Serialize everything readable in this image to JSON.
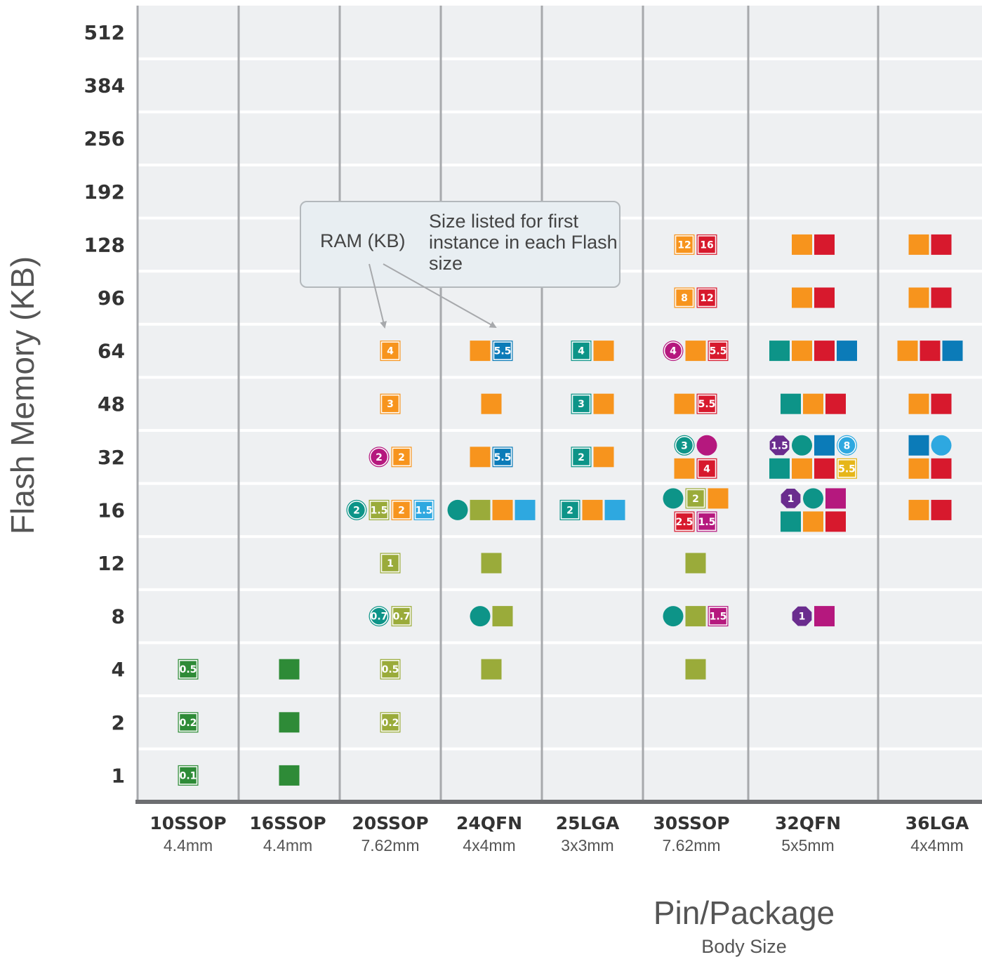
{
  "chart_data": {
    "type": "scatter",
    "ylabel": "Flash Memory (KB)",
    "xlabel": "Pin/Package",
    "xlabel_sub": "Body Size",
    "y_ticks": [
      "512",
      "384",
      "256",
      "192",
      "128",
      "96",
      "64",
      "48",
      "32",
      "16",
      "12",
      "8",
      "4",
      "2",
      "1"
    ],
    "packages": [
      {
        "name": "10SSOP",
        "size": "4.4mm"
      },
      {
        "name": "16SSOP",
        "size": "4.4mm"
      },
      {
        "name": "20SSOP",
        "size": "7.62mm"
      },
      {
        "name": "24QFN",
        "size": "4x4mm"
      },
      {
        "name": "25LGA",
        "size": "3x3mm"
      },
      {
        "name": "30SSOP",
        "size": "7.62mm"
      },
      {
        "name": "32QFN",
        "size": "5x5mm"
      },
      {
        "name": "36LGA",
        "size": "4x4mm"
      }
    ],
    "annotation": {
      "ram_label": "RAM (KB)",
      "size_note": "Size listed for first instance in each Flash size"
    },
    "colors": {
      "darkgreen": "#2e8b37",
      "olive": "#9aab3a",
      "teal": "#0d9488",
      "orange": "#f7941d",
      "red": "#d7192d",
      "blue": "#0b7bb8",
      "lightblue": "#2ea8e0",
      "magenta": "#b5187e",
      "purple": "#6a2c8e",
      "yellow": "#e6b619"
    },
    "points": [
      {
        "package": "10SSOP",
        "flash": "4",
        "row": 0,
        "markers": [
          {
            "shape": "square",
            "color": "darkgreen",
            "ram": "0.5"
          }
        ]
      },
      {
        "package": "10SSOP",
        "flash": "2",
        "row": 0,
        "markers": [
          {
            "shape": "square",
            "color": "darkgreen",
            "ram": "0.2"
          }
        ]
      },
      {
        "package": "10SSOP",
        "flash": "1",
        "row": 0,
        "markers": [
          {
            "shape": "square",
            "color": "darkgreen",
            "ram": "0.1"
          }
        ]
      },
      {
        "package": "16SSOP",
        "flash": "4",
        "row": 0,
        "markers": [
          {
            "shape": "square",
            "color": "darkgreen",
            "ram": ""
          }
        ]
      },
      {
        "package": "16SSOP",
        "flash": "2",
        "row": 0,
        "markers": [
          {
            "shape": "square",
            "color": "darkgreen",
            "ram": ""
          }
        ]
      },
      {
        "package": "16SSOP",
        "flash": "1",
        "row": 0,
        "markers": [
          {
            "shape": "square",
            "color": "darkgreen",
            "ram": ""
          }
        ]
      },
      {
        "package": "20SSOP",
        "flash": "64",
        "row": 0,
        "markers": [
          {
            "shape": "square",
            "color": "orange",
            "ram": "4"
          }
        ]
      },
      {
        "package": "20SSOP",
        "flash": "48",
        "row": 0,
        "markers": [
          {
            "shape": "square",
            "color": "orange",
            "ram": "3"
          }
        ]
      },
      {
        "package": "20SSOP",
        "flash": "32",
        "row": 0,
        "markers": [
          {
            "shape": "circle",
            "color": "magenta",
            "ram": "2"
          },
          {
            "shape": "square",
            "color": "orange",
            "ram": "2"
          }
        ]
      },
      {
        "package": "20SSOP",
        "flash": "16",
        "row": 0,
        "markers": [
          {
            "shape": "circle",
            "color": "teal",
            "ram": "2"
          },
          {
            "shape": "square",
            "color": "olive",
            "ram": "1.5"
          },
          {
            "shape": "square",
            "color": "orange",
            "ram": "2"
          },
          {
            "shape": "square",
            "color": "lightblue",
            "ram": "1.5"
          }
        ]
      },
      {
        "package": "20SSOP",
        "flash": "12",
        "row": 0,
        "markers": [
          {
            "shape": "square",
            "color": "olive",
            "ram": "1"
          }
        ]
      },
      {
        "package": "20SSOP",
        "flash": "8",
        "row": 0,
        "markers": [
          {
            "shape": "circle",
            "color": "teal",
            "ram": "0.7"
          },
          {
            "shape": "square",
            "color": "olive",
            "ram": "0.7"
          }
        ]
      },
      {
        "package": "20SSOP",
        "flash": "4",
        "row": 0,
        "markers": [
          {
            "shape": "square",
            "color": "olive",
            "ram": "0.5"
          }
        ]
      },
      {
        "package": "20SSOP",
        "flash": "2",
        "row": 0,
        "markers": [
          {
            "shape": "square",
            "color": "olive",
            "ram": "0.2"
          }
        ]
      },
      {
        "package": "24QFN",
        "flash": "64",
        "row": 0,
        "markers": [
          {
            "shape": "square",
            "color": "orange",
            "ram": ""
          },
          {
            "shape": "square",
            "color": "blue",
            "ram": "5.5"
          }
        ]
      },
      {
        "package": "24QFN",
        "flash": "48",
        "row": 0,
        "markers": [
          {
            "shape": "square",
            "color": "orange",
            "ram": ""
          }
        ]
      },
      {
        "package": "24QFN",
        "flash": "32",
        "row": 0,
        "markers": [
          {
            "shape": "square",
            "color": "orange",
            "ram": ""
          },
          {
            "shape": "square",
            "color": "blue",
            "ram": "5.5"
          }
        ]
      },
      {
        "package": "24QFN",
        "flash": "16",
        "row": 0,
        "markers": [
          {
            "shape": "circle",
            "color": "teal",
            "ram": ""
          },
          {
            "shape": "square",
            "color": "olive",
            "ram": ""
          },
          {
            "shape": "square",
            "color": "orange",
            "ram": ""
          },
          {
            "shape": "square",
            "color": "lightblue",
            "ram": ""
          }
        ]
      },
      {
        "package": "24QFN",
        "flash": "12",
        "row": 0,
        "markers": [
          {
            "shape": "square",
            "color": "olive",
            "ram": ""
          }
        ]
      },
      {
        "package": "24QFN",
        "flash": "8",
        "row": 0,
        "markers": [
          {
            "shape": "circle",
            "color": "teal",
            "ram": ""
          },
          {
            "shape": "square",
            "color": "olive",
            "ram": ""
          }
        ]
      },
      {
        "package": "24QFN",
        "flash": "4",
        "row": 0,
        "markers": [
          {
            "shape": "square",
            "color": "olive",
            "ram": ""
          }
        ]
      },
      {
        "package": "25LGA",
        "flash": "64",
        "row": 0,
        "markers": [
          {
            "shape": "square",
            "color": "teal",
            "ram": "4"
          },
          {
            "shape": "square",
            "color": "orange",
            "ram": ""
          }
        ]
      },
      {
        "package": "25LGA",
        "flash": "48",
        "row": 0,
        "markers": [
          {
            "shape": "square",
            "color": "teal",
            "ram": "3"
          },
          {
            "shape": "square",
            "color": "orange",
            "ram": ""
          }
        ]
      },
      {
        "package": "25LGA",
        "flash": "32",
        "row": 0,
        "markers": [
          {
            "shape": "square",
            "color": "teal",
            "ram": "2"
          },
          {
            "shape": "square",
            "color": "orange",
            "ram": ""
          }
        ]
      },
      {
        "package": "25LGA",
        "flash": "16",
        "row": 0,
        "markers": [
          {
            "shape": "square",
            "color": "teal",
            "ram": "2"
          },
          {
            "shape": "square",
            "color": "orange",
            "ram": ""
          },
          {
            "shape": "square",
            "color": "lightblue",
            "ram": ""
          }
        ]
      },
      {
        "package": "30SSOP",
        "flash": "128",
        "row": 0,
        "markers": [
          {
            "shape": "square",
            "color": "orange",
            "ram": "12"
          },
          {
            "shape": "square",
            "color": "red",
            "ram": "16"
          }
        ]
      },
      {
        "package": "30SSOP",
        "flash": "96",
        "row": 0,
        "markers": [
          {
            "shape": "square",
            "color": "orange",
            "ram": "8"
          },
          {
            "shape": "square",
            "color": "red",
            "ram": "12"
          }
        ]
      },
      {
        "package": "30SSOP",
        "flash": "64",
        "row": 0,
        "markers": [
          {
            "shape": "circle",
            "color": "magenta",
            "ram": "4"
          },
          {
            "shape": "square",
            "color": "orange",
            "ram": ""
          },
          {
            "shape": "square",
            "color": "red",
            "ram": "5.5"
          }
        ]
      },
      {
        "package": "30SSOP",
        "flash": "48",
        "row": 0,
        "markers": [
          {
            "shape": "square",
            "color": "orange",
            "ram": ""
          },
          {
            "shape": "square",
            "color": "red",
            "ram": "5.5"
          }
        ]
      },
      {
        "package": "30SSOP",
        "flash": "32",
        "row": -1,
        "markers": [
          {
            "shape": "circle",
            "color": "teal",
            "ram": "3"
          },
          {
            "shape": "circle",
            "color": "magenta",
            "ram": ""
          }
        ]
      },
      {
        "package": "30SSOP",
        "flash": "32",
        "row": 1,
        "markers": [
          {
            "shape": "square",
            "color": "orange",
            "ram": ""
          },
          {
            "shape": "square",
            "color": "red",
            "ram": "4"
          }
        ]
      },
      {
        "package": "30SSOP",
        "flash": "16",
        "row": -1,
        "markers": [
          {
            "shape": "circle",
            "color": "teal",
            "ram": ""
          },
          {
            "shape": "square",
            "color": "olive",
            "ram": "2"
          },
          {
            "shape": "square",
            "color": "orange",
            "ram": ""
          }
        ]
      },
      {
        "package": "30SSOP",
        "flash": "16",
        "row": 1,
        "markers": [
          {
            "shape": "square",
            "color": "red",
            "ram": "2.5"
          },
          {
            "shape": "square",
            "color": "magenta",
            "ram": "1.5"
          }
        ]
      },
      {
        "package": "30SSOP",
        "flash": "12",
        "row": 0,
        "markers": [
          {
            "shape": "square",
            "color": "olive",
            "ram": ""
          }
        ]
      },
      {
        "package": "30SSOP",
        "flash": "8",
        "row": 0,
        "markers": [
          {
            "shape": "circle",
            "color": "teal",
            "ram": ""
          },
          {
            "shape": "square",
            "color": "olive",
            "ram": ""
          },
          {
            "shape": "square",
            "color": "magenta",
            "ram": "1.5"
          }
        ]
      },
      {
        "package": "30SSOP",
        "flash": "4",
        "row": 0,
        "markers": [
          {
            "shape": "square",
            "color": "olive",
            "ram": ""
          }
        ]
      },
      {
        "package": "32QFN",
        "flash": "128",
        "row": 0,
        "markers": [
          {
            "shape": "square",
            "color": "orange",
            "ram": ""
          },
          {
            "shape": "square",
            "color": "red",
            "ram": ""
          }
        ]
      },
      {
        "package": "32QFN",
        "flash": "96",
        "row": 0,
        "markers": [
          {
            "shape": "square",
            "color": "orange",
            "ram": ""
          },
          {
            "shape": "square",
            "color": "red",
            "ram": ""
          }
        ]
      },
      {
        "package": "32QFN",
        "flash": "64",
        "row": 0,
        "markers": [
          {
            "shape": "square",
            "color": "teal",
            "ram": ""
          },
          {
            "shape": "square",
            "color": "orange",
            "ram": ""
          },
          {
            "shape": "square",
            "color": "red",
            "ram": ""
          },
          {
            "shape": "square",
            "color": "blue",
            "ram": ""
          }
        ]
      },
      {
        "package": "32QFN",
        "flash": "48",
        "row": 0,
        "markers": [
          {
            "shape": "square",
            "color": "teal",
            "ram": ""
          },
          {
            "shape": "square",
            "color": "orange",
            "ram": ""
          },
          {
            "shape": "square",
            "color": "red",
            "ram": ""
          }
        ]
      },
      {
        "package": "32QFN",
        "flash": "32",
        "row": -1,
        "markers": [
          {
            "shape": "octagon",
            "color": "purple",
            "ram": "1.5"
          },
          {
            "shape": "circle",
            "color": "teal",
            "ram": ""
          },
          {
            "shape": "square",
            "color": "blue",
            "ram": ""
          },
          {
            "shape": "circle",
            "color": "lightblue",
            "ram": "8"
          }
        ]
      },
      {
        "package": "32QFN",
        "flash": "32",
        "row": 1,
        "markers": [
          {
            "shape": "square",
            "color": "teal",
            "ram": ""
          },
          {
            "shape": "square",
            "color": "orange",
            "ram": ""
          },
          {
            "shape": "square",
            "color": "red",
            "ram": ""
          },
          {
            "shape": "square",
            "color": "yellow",
            "ram": "5.5"
          }
        ]
      },
      {
        "package": "32QFN",
        "flash": "16",
        "row": -1,
        "markers": [
          {
            "shape": "octagon",
            "color": "purple",
            "ram": "1"
          },
          {
            "shape": "circle",
            "color": "teal",
            "ram": ""
          },
          {
            "shape": "square",
            "color": "magenta",
            "ram": ""
          }
        ]
      },
      {
        "package": "32QFN",
        "flash": "16",
        "row": 1,
        "markers": [
          {
            "shape": "square",
            "color": "teal",
            "ram": ""
          },
          {
            "shape": "square",
            "color": "orange",
            "ram": ""
          },
          {
            "shape": "square",
            "color": "red",
            "ram": ""
          }
        ]
      },
      {
        "package": "32QFN",
        "flash": "8",
        "row": 0,
        "markers": [
          {
            "shape": "octagon",
            "color": "purple",
            "ram": "1"
          },
          {
            "shape": "square",
            "color": "magenta",
            "ram": ""
          }
        ]
      },
      {
        "package": "36LGA",
        "flash": "128",
        "row": 0,
        "markers": [
          {
            "shape": "square",
            "color": "orange",
            "ram": ""
          },
          {
            "shape": "square",
            "color": "red",
            "ram": ""
          }
        ]
      },
      {
        "package": "36LGA",
        "flash": "96",
        "row": 0,
        "markers": [
          {
            "shape": "square",
            "color": "orange",
            "ram": ""
          },
          {
            "shape": "square",
            "color": "red",
            "ram": ""
          }
        ]
      },
      {
        "package": "36LGA",
        "flash": "64",
        "row": 0,
        "markers": [
          {
            "shape": "square",
            "color": "orange",
            "ram": ""
          },
          {
            "shape": "square",
            "color": "red",
            "ram": ""
          },
          {
            "shape": "square",
            "color": "blue",
            "ram": ""
          }
        ]
      },
      {
        "package": "36LGA",
        "flash": "48",
        "row": 0,
        "markers": [
          {
            "shape": "square",
            "color": "orange",
            "ram": ""
          },
          {
            "shape": "square",
            "color": "red",
            "ram": ""
          }
        ]
      },
      {
        "package": "36LGA",
        "flash": "32",
        "row": -1,
        "markers": [
          {
            "shape": "square",
            "color": "blue",
            "ram": ""
          },
          {
            "shape": "circle",
            "color": "lightblue",
            "ram": ""
          }
        ]
      },
      {
        "package": "36LGA",
        "flash": "32",
        "row": 1,
        "markers": [
          {
            "shape": "square",
            "color": "orange",
            "ram": ""
          },
          {
            "shape": "square",
            "color": "red",
            "ram": ""
          }
        ]
      },
      {
        "package": "36LGA",
        "flash": "16",
        "row": 0,
        "markers": [
          {
            "shape": "square",
            "color": "orange",
            "ram": ""
          },
          {
            "shape": "square",
            "color": "red",
            "ram": ""
          }
        ]
      }
    ]
  }
}
